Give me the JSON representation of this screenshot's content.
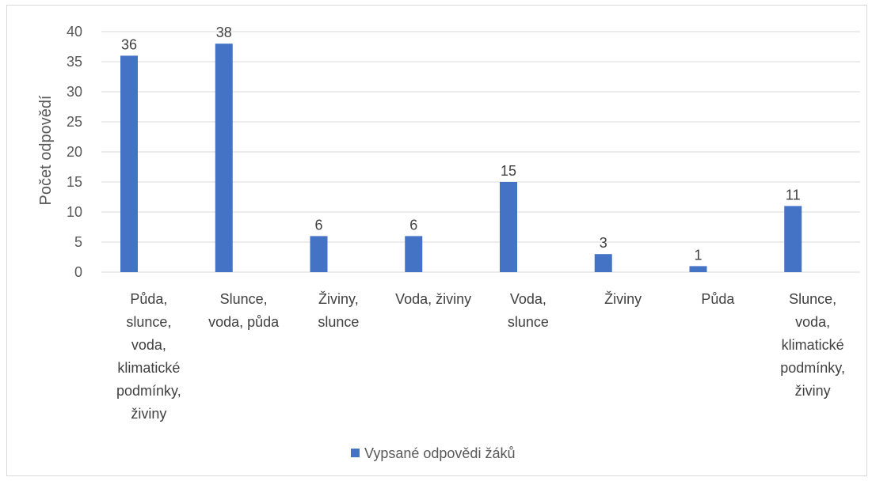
{
  "chart_data": {
    "type": "bar",
    "title": "",
    "xlabel": "",
    "ylabel": "Počet odpovědí",
    "ylim": [
      0,
      40
    ],
    "yticks": [
      0,
      5,
      10,
      15,
      20,
      25,
      30,
      35,
      40
    ],
    "grid": true,
    "legend_position": "bottom",
    "categories": [
      [
        "Půda,",
        "slunce,",
        "voda,",
        "klimatické",
        "podmínky,",
        "živiny"
      ],
      [
        "Slunce,",
        "voda, půda"
      ],
      [
        "Živiny,",
        "slunce"
      ],
      [
        "Voda, živiny"
      ],
      [
        "Voda,",
        "slunce"
      ],
      [
        "Živiny"
      ],
      [
        "Půda"
      ],
      [
        "Slunce,",
        "voda,",
        "klimatické",
        "podmínky,",
        "živiny"
      ]
    ],
    "series": [
      {
        "name": "Vypsané odpovědi žáků",
        "color": "#4472c4",
        "values": [
          36,
          38,
          6,
          6,
          15,
          3,
          1,
          11
        ]
      }
    ]
  }
}
